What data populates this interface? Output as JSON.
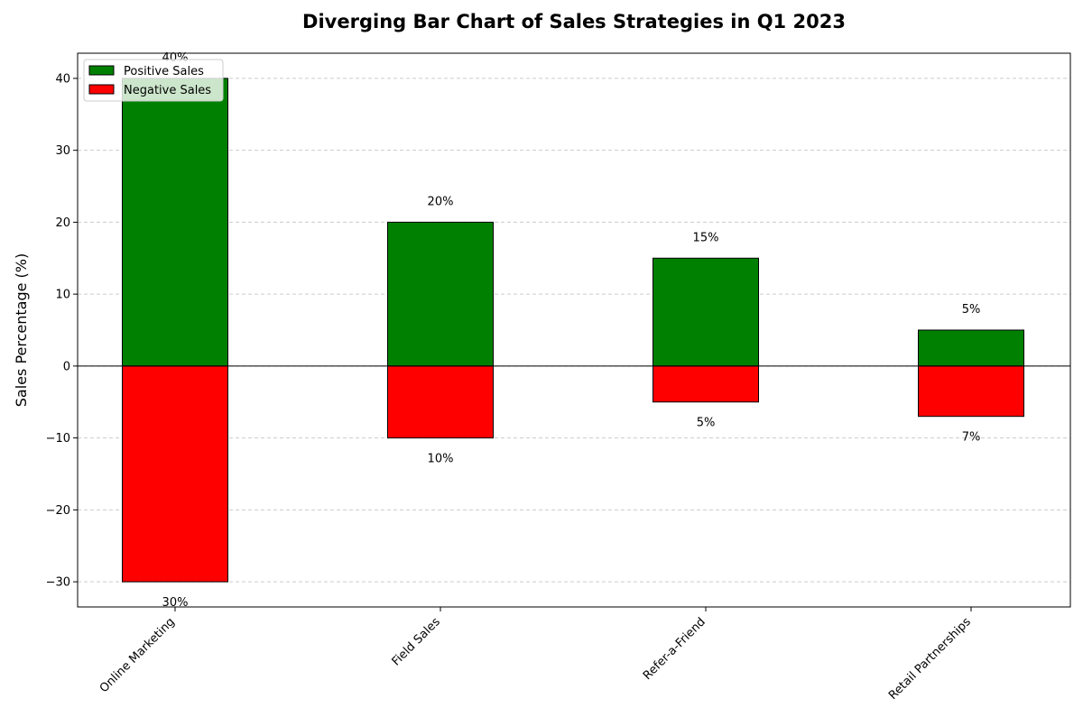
{
  "chart_data": {
    "type": "bar",
    "title": "Diverging Bar Chart of Sales Strategies in Q1 2023",
    "xlabel": "",
    "ylabel": "Sales Percentage (%)",
    "categories": [
      "Online Marketing",
      "Field Sales",
      "Refer-a-Friend",
      "Retail Partnerships"
    ],
    "series": [
      {
        "name": "Positive Sales",
        "color": "#008000",
        "values": [
          40,
          20,
          15,
          5
        ],
        "labels": [
          "40%",
          "20%",
          "15%",
          "5%"
        ]
      },
      {
        "name": "Negative Sales",
        "color": "#ff0000",
        "values": [
          -30,
          -10,
          -5,
          -7
        ],
        "labels": [
          "30%",
          "10%",
          "5%",
          "7%"
        ]
      }
    ],
    "ylim": [
      -33.5,
      43.5
    ],
    "yticks": [
      -30,
      -20,
      -10,
      0,
      10,
      20,
      30,
      40
    ],
    "ytick_labels": [
      "−30",
      "−20",
      "−10",
      "0",
      "10",
      "20",
      "30",
      "40"
    ],
    "grid": true,
    "legend_position": "top-left"
  }
}
